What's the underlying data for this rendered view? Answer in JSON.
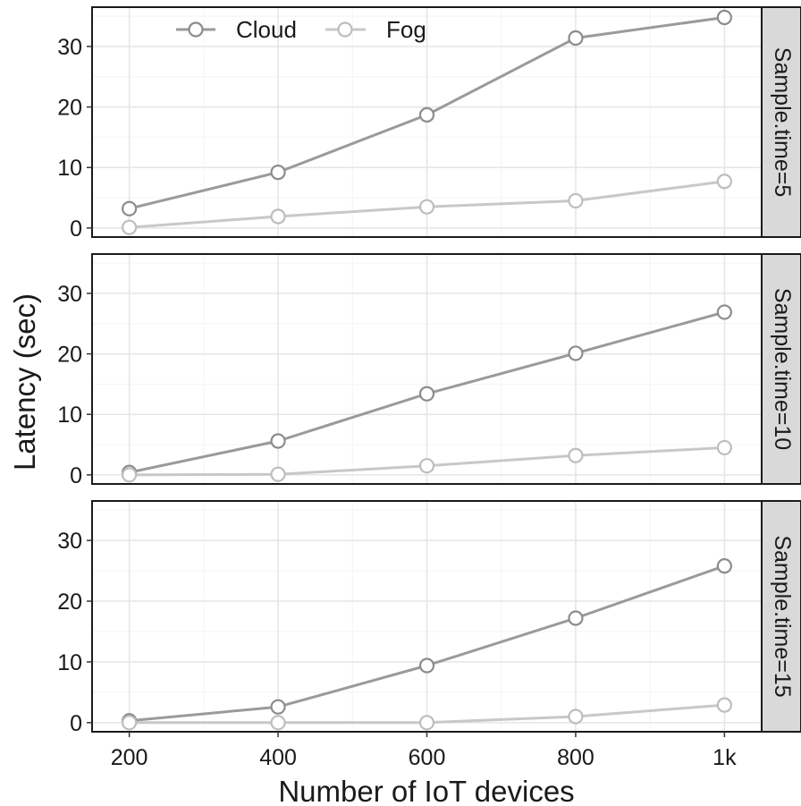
{
  "chart_data": {
    "type": "line",
    "xlabel": "Number of IoT devices",
    "ylabel": "Latency (sec)",
    "x": [
      200,
      400,
      600,
      800,
      1000
    ],
    "x_tick_labels": [
      "200",
      "400",
      "600",
      "800",
      "1k"
    ],
    "ylim": [
      -1.5,
      36.5
    ],
    "y_ticks": [
      0,
      10,
      20,
      30
    ],
    "grid": true,
    "legend_position": "top-left",
    "legend": [
      {
        "name": "Cloud",
        "color": "#9a9a9a"
      },
      {
        "name": "Fog",
        "color": "#c8c8c8"
      }
    ],
    "panels": [
      {
        "label": "Sample.time=5",
        "series": [
          {
            "name": "Cloud",
            "values": [
              3.2,
              9.2,
              18.7,
              31.4,
              34.8
            ]
          },
          {
            "name": "Fog",
            "values": [
              0.1,
              1.9,
              3.5,
              4.5,
              7.7
            ]
          }
        ]
      },
      {
        "label": "Sample.time=10",
        "series": [
          {
            "name": "Cloud",
            "values": [
              0.4,
              5.6,
              13.4,
              20.1,
              26.9
            ]
          },
          {
            "name": "Fog",
            "values": [
              0.0,
              0.1,
              1.5,
              3.2,
              4.5
            ]
          }
        ]
      },
      {
        "label": "Sample.time=15",
        "series": [
          {
            "name": "Cloud",
            "values": [
              0.3,
              2.6,
              9.4,
              17.2,
              25.8
            ]
          },
          {
            "name": "Fog",
            "values": [
              0.0,
              0.0,
              0.0,
              1.0,
              2.9
            ]
          }
        ]
      }
    ]
  }
}
